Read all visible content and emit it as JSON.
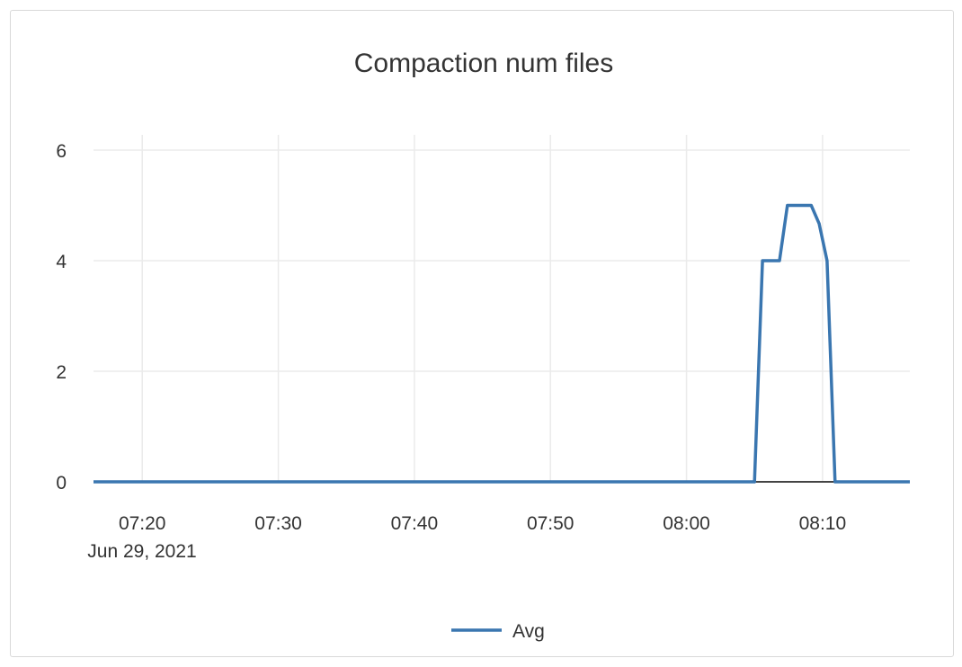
{
  "chart_data": {
    "type": "line",
    "title": "Compaction num files",
    "xlabel": "",
    "ylabel": "",
    "date_label": "Jun 29, 2021",
    "xlim": [
      "07:16:25",
      "08:16:25"
    ],
    "ylim": [
      0,
      6
    ],
    "x_ticks": [
      "07:20",
      "07:30",
      "07:40",
      "07:50",
      "08:00",
      "08:10"
    ],
    "y_ticks": [
      0,
      2,
      4,
      6
    ],
    "grid": true,
    "legend_position": "bottom",
    "series": [
      {
        "name": "Avg",
        "color": "#3a76b0",
        "x": [
          "07:16:25",
          "08:05:00",
          "08:05:35",
          "08:06:50",
          "08:07:25",
          "08:09:10",
          "08:09:45",
          "08:10:20",
          "08:10:55",
          "08:16:25"
        ],
        "y": [
          0,
          0,
          4,
          4,
          5,
          5,
          4.67,
          4,
          0,
          0
        ]
      }
    ]
  }
}
